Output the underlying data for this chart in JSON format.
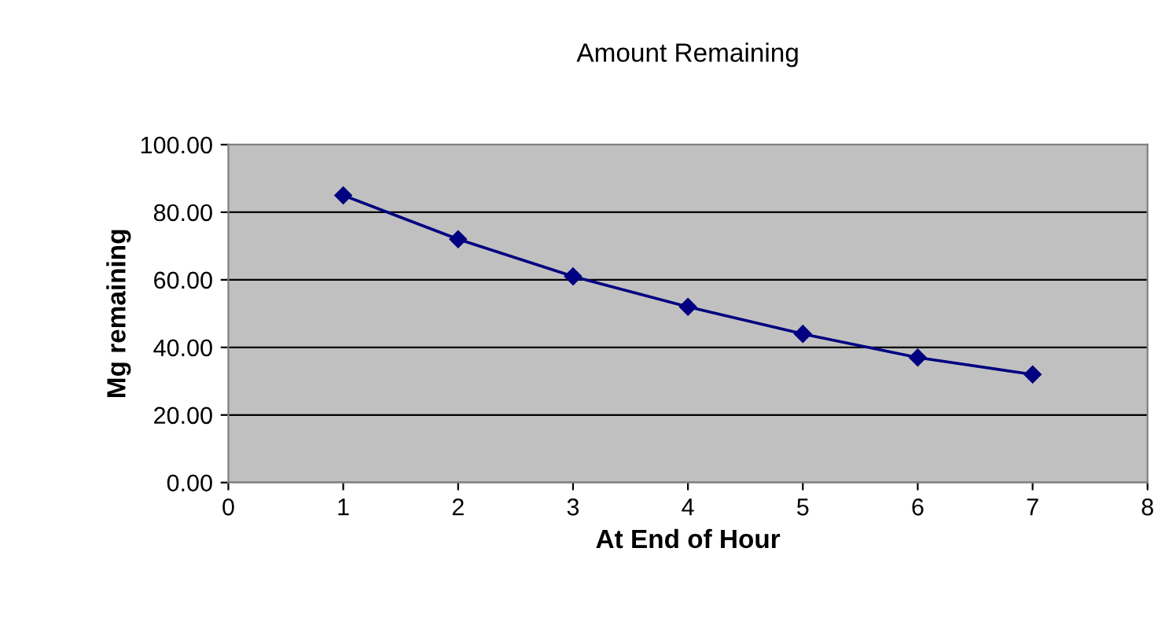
{
  "chart_data": {
    "type": "line",
    "title": "Amount Remaining",
    "xlabel": "At End of Hour",
    "ylabel": "Mg remaining",
    "x": [
      1,
      2,
      3,
      4,
      5,
      6,
      7
    ],
    "series": [
      {
        "color": "#000080",
        "values": [
          85,
          72,
          61,
          52,
          44,
          37,
          32
        ]
      }
    ],
    "xlim": [
      0,
      8
    ],
    "xticks": [
      0,
      1,
      2,
      3,
      4,
      5,
      6,
      7,
      8
    ],
    "ylim": [
      0,
      100
    ],
    "yticks": [
      {
        "value": 0,
        "label": "0.00"
      },
      {
        "value": 20,
        "label": "20.00"
      },
      {
        "value": 40,
        "label": "40.00"
      },
      {
        "value": 60,
        "label": "60.00"
      },
      {
        "value": 80,
        "label": "80.00"
      },
      {
        "value": 100,
        "label": "100.00"
      }
    ],
    "grid": "y",
    "marker": "diamond",
    "line_style": "solid"
  }
}
